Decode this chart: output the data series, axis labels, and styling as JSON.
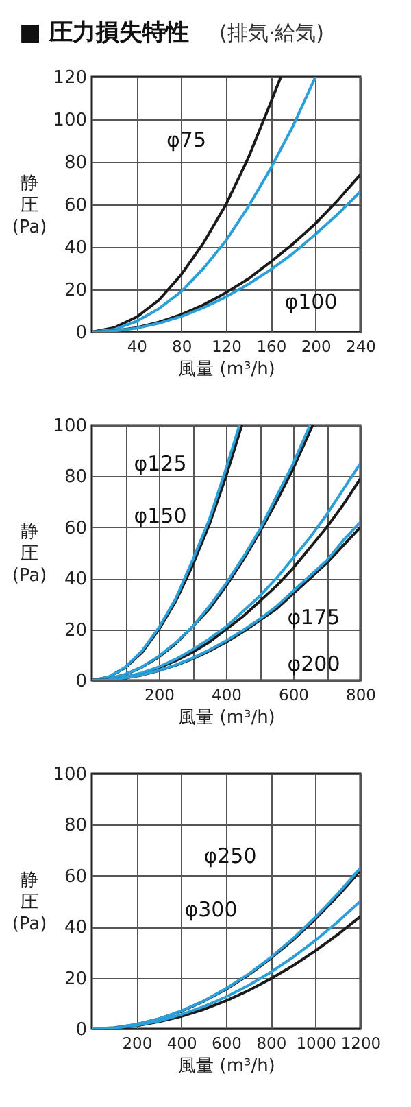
{
  "chart_data": [
    {
      "type": "line",
      "title": "■ 圧力損失特性",
      "subtitle": "(排気·給気)",
      "xlabel": "風量 (m³/h)",
      "ylabel": "静圧(Pa)",
      "xlim": [
        0,
        240
      ],
      "ylim": [
        0,
        120
      ],
      "xticks": [
        40,
        80,
        120,
        160,
        200,
        240
      ],
      "yticks": [
        0,
        20,
        40,
        60,
        80,
        100,
        120
      ],
      "grid": true,
      "legend": false,
      "marker": "none",
      "line_style": "solid",
      "annotations": [
        "φ75",
        "φ100"
      ],
      "series": [
        {
          "color": "#1a1a1a",
          "x": [
            0,
            20,
            40,
            60,
            80,
            100,
            120,
            140,
            160,
            169
          ],
          "values": [
            0,
            2,
            7,
            15,
            27,
            42,
            60,
            82,
            108,
            120
          ]
        },
        {
          "color": "#2a9fd8",
          "x": [
            0,
            20,
            40,
            60,
            80,
            100,
            120,
            140,
            160,
            180,
            200
          ],
          "values": [
            0,
            1.2,
            5,
            11,
            19,
            30,
            43,
            59,
            77,
            97,
            120
          ]
        },
        {
          "color": "#1a1a1a",
          "x": [
            0,
            20,
            40,
            60,
            80,
            100,
            120,
            140,
            160,
            180,
            200,
            220,
            240
          ],
          "values": [
            0,
            0.5,
            2,
            4.6,
            8.2,
            12.8,
            18.5,
            25,
            33,
            41.5,
            51,
            62,
            74
          ]
        },
        {
          "color": "#2a9fd8",
          "x": [
            0,
            20,
            40,
            60,
            80,
            100,
            120,
            140,
            160,
            180,
            200,
            220,
            240
          ],
          "values": [
            0,
            0.5,
            1.8,
            4.1,
            7.3,
            11.5,
            16.5,
            22.5,
            29.3,
            37,
            46,
            55.5,
            66
          ]
        }
      ]
    },
    {
      "type": "line",
      "xlabel": "風量 (m³/h)",
      "ylabel": "静圧(Pa)",
      "xlim": [
        0,
        800
      ],
      "ylim": [
        0,
        100
      ],
      "xticks": [
        {
          "value": 100,
          "label": null
        },
        200,
        {
          "value": 300,
          "label": null
        },
        400,
        {
          "value": 500,
          "label": null
        },
        600,
        {
          "value": 700,
          "label": null
        },
        800
      ],
      "yticks": [
        0,
        20,
        40,
        60,
        80,
        100
      ],
      "grid": true,
      "legend": false,
      "marker": "none",
      "line_style": "solid",
      "annotations": [
        "φ125",
        "φ150",
        "φ175",
        "φ200"
      ],
      "series": [
        {
          "color": "#1a1a1a",
          "x": [
            0,
            50,
            100,
            150,
            200,
            250,
            300,
            350,
            400,
            447
          ],
          "values": [
            0,
            1.3,
            5,
            11,
            20,
            31,
            45,
            61,
            80,
            100
          ]
        },
        {
          "color": "#2a9fd8",
          "x": [
            0,
            50,
            100,
            150,
            200,
            250,
            300,
            350,
            400,
            440
          ],
          "values": [
            0,
            1.3,
            5.2,
            11.6,
            20.7,
            32,
            47,
            63,
            83,
            100
          ]
        },
        {
          "color": "#1a1a1a",
          "x": [
            0,
            50,
            100,
            150,
            200,
            250,
            300,
            350,
            400,
            450,
            500,
            550,
            600,
            658
          ],
          "values": [
            0,
            0.6,
            2.3,
            5.2,
            9.2,
            14.4,
            21,
            28,
            37,
            47,
            58,
            70,
            83,
            100
          ]
        },
        {
          "color": "#2a9fd8",
          "x": [
            0,
            50,
            100,
            150,
            200,
            250,
            300,
            350,
            400,
            450,
            500,
            550,
            600,
            650
          ],
          "values": [
            0,
            0.6,
            2.4,
            5.3,
            9.5,
            14.8,
            21,
            29,
            38,
            48,
            59,
            72,
            85,
            100
          ]
        },
        {
          "color": "#1a1a1a",
          "x": [
            0,
            50,
            100,
            150,
            200,
            250,
            300,
            350,
            400,
            450,
            500,
            550,
            600,
            650,
            700,
            750,
            800
          ],
          "values": [
            0,
            0.3,
            1.2,
            2.8,
            4.9,
            7.7,
            11,
            15,
            20,
            25,
            31,
            37,
            44,
            52,
            60,
            69,
            79
          ]
        },
        {
          "color": "#2a9fd8",
          "x": [
            0,
            50,
            100,
            150,
            200,
            250,
            300,
            350,
            400,
            450,
            500,
            550,
            600,
            650,
            700,
            750,
            800
          ],
          "values": [
            0,
            0.3,
            1.3,
            3,
            5.3,
            8.3,
            12,
            16.3,
            21,
            27,
            33,
            40,
            48,
            56,
            65,
            75,
            85
          ]
        },
        {
          "color": "#1a1a1a",
          "x": [
            0,
            50,
            100,
            150,
            200,
            250,
            300,
            350,
            400,
            450,
            500,
            550,
            600,
            650,
            700,
            750,
            800
          ],
          "values": [
            0,
            0.2,
            0.9,
            2.1,
            3.8,
            5.9,
            8.4,
            11.5,
            15,
            19,
            23.5,
            28,
            34,
            40,
            46,
            53,
            60
          ]
        },
        {
          "color": "#2a9fd8",
          "x": [
            0,
            50,
            100,
            150,
            200,
            250,
            300,
            350,
            400,
            450,
            500,
            550,
            600,
            650,
            700,
            750,
            800
          ],
          "values": [
            0,
            0.2,
            1,
            2.2,
            3.9,
            6,
            8.7,
            11.9,
            15.5,
            19.6,
            24,
            29,
            35,
            41,
            47,
            55,
            62
          ]
        }
      ]
    },
    {
      "type": "line",
      "xlabel": "風量 (m³/h)",
      "ylabel": "静圧(Pa)",
      "xlim": [
        0,
        1200
      ],
      "ylim": [
        0,
        100
      ],
      "xticks": [
        200,
        400,
        600,
        800,
        1000,
        1200
      ],
      "yticks": [
        0,
        20,
        40,
        60,
        80,
        100
      ],
      "grid": true,
      "legend": false,
      "marker": "none",
      "line_style": "solid",
      "annotations": [
        "φ250",
        "φ300"
      ],
      "series": [
        {
          "color": "#1a1a1a",
          "x": [
            0,
            100,
            200,
            300,
            400,
            500,
            600,
            700,
            800,
            900,
            1000,
            1100,
            1200
          ],
          "values": [
            0,
            0.4,
            1.7,
            3.9,
            6.9,
            10.8,
            15.5,
            21.1,
            27.6,
            34.9,
            43.1,
            52.1,
            62
          ]
        },
        {
          "color": "#2a9fd8",
          "x": [
            0,
            100,
            200,
            300,
            400,
            500,
            600,
            700,
            800,
            900,
            1000,
            1100,
            1200
          ],
          "values": [
            0,
            0.4,
            1.8,
            3.9,
            7,
            10.9,
            15.8,
            21.4,
            28,
            35.4,
            43.8,
            53,
            63
          ]
        },
        {
          "color": "#1a1a1a",
          "x": [
            0,
            100,
            200,
            300,
            400,
            500,
            600,
            700,
            800,
            900,
            1000,
            1100,
            1200
          ],
          "values": [
            0,
            0.3,
            1.2,
            2.8,
            4.9,
            7.6,
            11,
            15,
            19.6,
            24.8,
            30.6,
            37,
            44
          ]
        },
        {
          "color": "#2a9fd8",
          "x": [
            0,
            100,
            200,
            300,
            400,
            500,
            600,
            700,
            800,
            900,
            1000,
            1100,
            1200
          ],
          "values": [
            0,
            0.3,
            1.4,
            3.1,
            5.6,
            8.7,
            12.5,
            17,
            22.2,
            28.1,
            34.7,
            42,
            50
          ]
        }
      ]
    }
  ]
}
